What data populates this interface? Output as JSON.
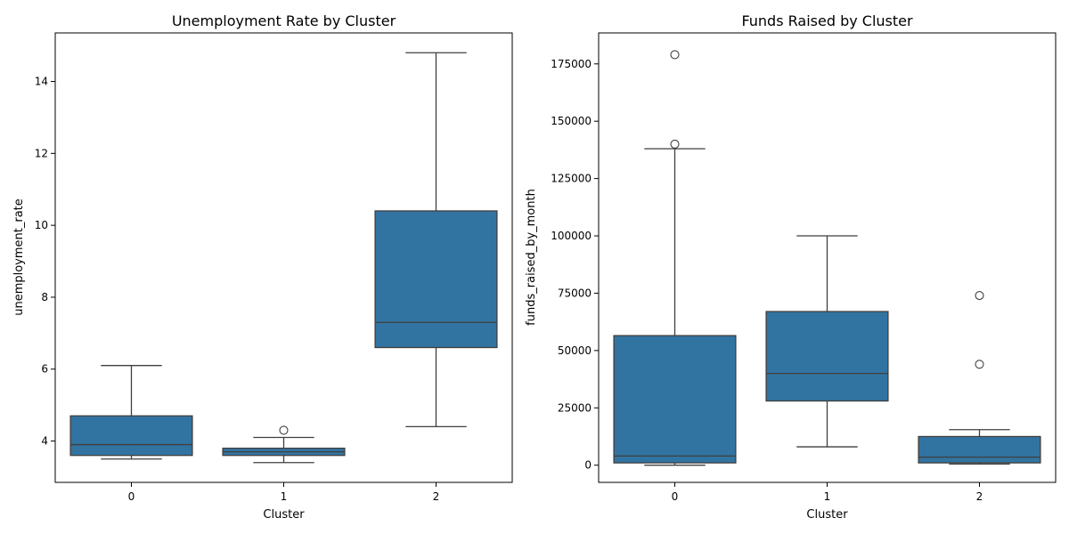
{
  "chart_data": [
    {
      "type": "box",
      "title": "Unemployment Rate by Cluster",
      "xlabel": "Cluster",
      "ylabel": "unemployment_rate",
      "categories": [
        "0",
        "1",
        "2"
      ],
      "ylim": [
        2.85,
        15.35
      ],
      "yticks": [
        4,
        6,
        8,
        10,
        12,
        14
      ],
      "ytick_labels": [
        "4",
        "6",
        "8",
        "10",
        "12",
        "14"
      ],
      "box_color": "#3274a1",
      "boxes": [
        {
          "category": "0",
          "whisker_low": 3.5,
          "q1": 3.6,
          "median": 3.9,
          "q3": 4.7,
          "whisker_high": 6.1,
          "outliers": []
        },
        {
          "category": "1",
          "whisker_low": 3.4,
          "q1": 3.6,
          "median": 3.7,
          "q3": 3.8,
          "whisker_high": 4.1,
          "outliers": [
            4.3
          ]
        },
        {
          "category": "2",
          "whisker_low": 4.4,
          "q1": 6.6,
          "median": 7.3,
          "q3": 10.4,
          "whisker_high": 14.8,
          "outliers": []
        }
      ]
    },
    {
      "type": "box",
      "title": "Funds Raised by Cluster",
      "xlabel": "Cluster",
      "ylabel": "funds_raised_by_month",
      "categories": [
        "0",
        "1",
        "2"
      ],
      "ylim": [
        -7500,
        188500
      ],
      "yticks": [
        0,
        25000,
        50000,
        75000,
        100000,
        125000,
        150000,
        175000
      ],
      "ytick_labels": [
        "0",
        "25000",
        "50000",
        "75000",
        "100000",
        "125000",
        "150000",
        "175000"
      ],
      "box_color": "#3274a1",
      "boxes": [
        {
          "category": "0",
          "whisker_low": 0,
          "q1": 1000,
          "median": 4000,
          "q3": 56500,
          "whisker_high": 138000,
          "outliers": [
            140000,
            179000
          ]
        },
        {
          "category": "1",
          "whisker_low": 8000,
          "q1": 28000,
          "median": 40000,
          "q3": 67000,
          "whisker_high": 100000,
          "outliers": []
        },
        {
          "category": "2",
          "whisker_low": 500,
          "q1": 1000,
          "median": 3500,
          "q3": 12500,
          "whisker_high": 15500,
          "outliers": [
            44000,
            74000
          ]
        }
      ]
    }
  ]
}
